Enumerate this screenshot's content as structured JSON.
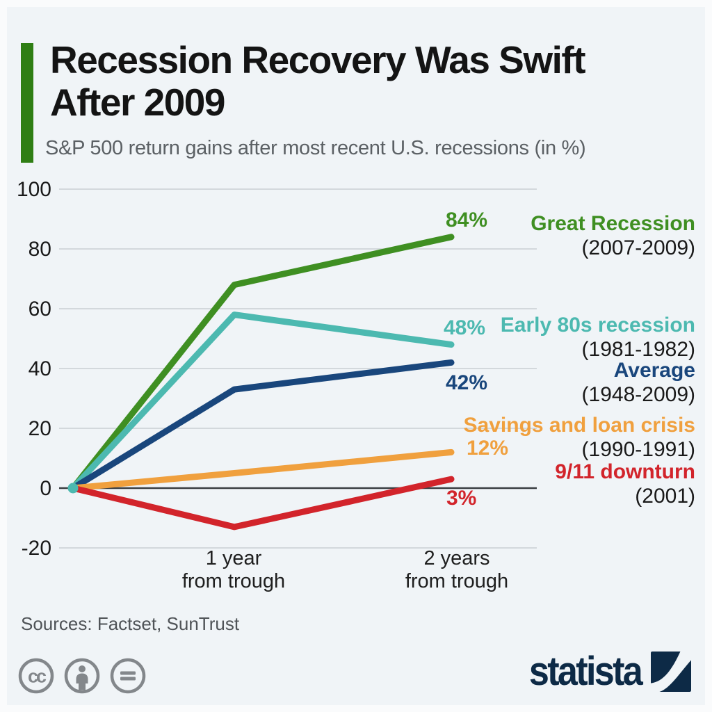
{
  "page": {
    "background": "#f0f4f7"
  },
  "header": {
    "accent_color": "#2f7e14",
    "title_lines": [
      "Recession Recovery Was Swift",
      "After 2009"
    ],
    "subtitle": "S&P 500 return gains after most recent U.S. recessions (in %)"
  },
  "chart_data": {
    "type": "line",
    "title": "Recession Recovery Was Swift After 2009",
    "subtitle": "S&P 500 return gains after most recent U.S. recessions (in %)",
    "unit": "%",
    "categories": [
      "trough",
      "1 year from trough",
      "2 years from trough"
    ],
    "x_tick_labels": [
      [
        "1 year",
        "from trough"
      ],
      [
        "2 years",
        "from trough"
      ]
    ],
    "yticks": [
      100,
      80,
      60,
      40,
      20,
      0,
      -20
    ],
    "ylim": [
      -20,
      100
    ],
    "grid": true,
    "zero_line": true,
    "legend_position": "right",
    "axis_color": "#1a1a1a",
    "grid_color": "#c9ced3",
    "zero_line_color": "#3a3e42",
    "series": [
      {
        "name": "Great Recession",
        "period": "(2007-2009)",
        "color": "#3f8f22",
        "values": [
          0,
          68,
          84
        ],
        "end_label": "84%"
      },
      {
        "name": "Early 80s recession",
        "period": "(1981-1982)",
        "color": "#4cb9b0",
        "values": [
          0,
          58,
          48
        ],
        "end_label": "48%"
      },
      {
        "name": "Average",
        "period": "(1948-2009)",
        "color": "#19467c",
        "values": [
          0,
          33,
          42
        ],
        "end_label": "42%"
      },
      {
        "name": "Savings and loan crisis",
        "period": "(1990-1991)",
        "color": "#f0a03e",
        "values": [
          0,
          5,
          12
        ],
        "end_label": "12%"
      },
      {
        "name": "9/11 downturn",
        "period": "(2001)",
        "color": "#d2242b",
        "values": [
          0,
          -13,
          3
        ],
        "end_label": "3%"
      }
    ]
  },
  "footer": {
    "sources": "Sources: Factset, SunTrust",
    "cc_icons": [
      "cc-license",
      "attribution",
      "no-derivatives"
    ],
    "icon_color": "#83878b",
    "logo_text": "statista",
    "logo_color": "#0d2a46"
  }
}
